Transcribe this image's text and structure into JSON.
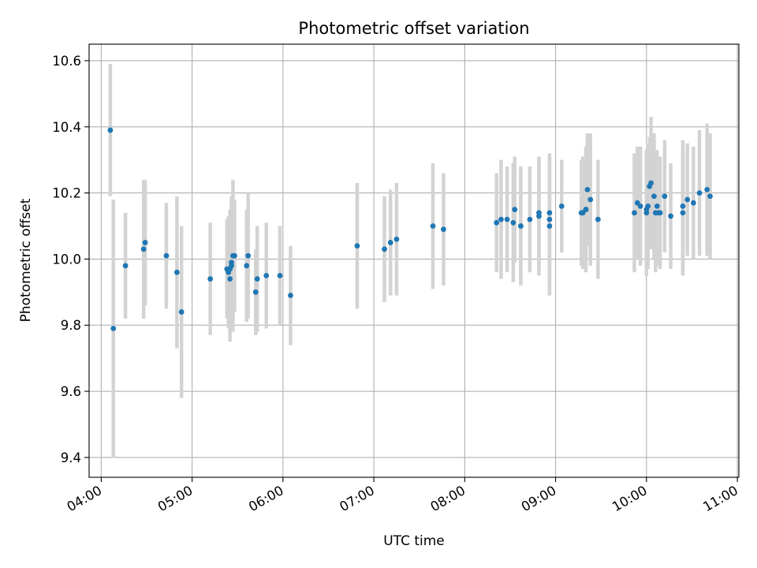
{
  "chart_data": {
    "type": "scatter",
    "title": "Photometric offset variation",
    "xlabel": "UTC time",
    "ylabel": "Photometric offset",
    "x_axis": "time (HH:MM UTC)",
    "xlim": [
      "03:52",
      "11:01"
    ],
    "ylim": [
      9.34,
      10.65
    ],
    "xticks": [
      "04:00",
      "05:00",
      "06:00",
      "07:00",
      "08:00",
      "09:00",
      "10:00",
      "11:00"
    ],
    "yticks": [
      9.4,
      9.6,
      9.8,
      10.0,
      10.2,
      10.4,
      10.6
    ],
    "ytick_labels": [
      "9.4",
      "9.6",
      "9.8",
      "10.0",
      "10.2",
      "10.4",
      "10.6"
    ],
    "grid": true,
    "legend": "none",
    "colors": {
      "points": "#1f77b4",
      "error_bars": "#d3d3d3",
      "grid": "#b0b0b0"
    },
    "series": [
      {
        "x": [
          "04:06",
          "04:08",
          "04:16",
          "04:28",
          "04:29",
          "04:43",
          "04:50",
          "04:53",
          "05:12",
          "05:23",
          "05:24",
          "05:25",
          "05:25",
          "05:26",
          "05:26",
          "05:27",
          "05:28",
          "05:36",
          "05:37",
          "05:42",
          "05:43",
          "05:49",
          "05:58",
          "06:05",
          "06:49",
          "07:07",
          "07:11",
          "07:15",
          "07:39",
          "07:46",
          "08:21",
          "08:24",
          "08:28",
          "08:32",
          "08:33",
          "08:37",
          "08:37",
          "08:43",
          "08:49",
          "08:49",
          "08:56",
          "08:56",
          "08:56",
          "09:04",
          "09:17",
          "09:18",
          "09:20",
          "09:20",
          "09:21",
          "09:23",
          "09:28",
          "09:52",
          "09:54",
          "09:56",
          "10:00",
          "10:00",
          "10:01",
          "10:02",
          "10:03",
          "10:05",
          "10:06",
          "10:07",
          "10:08",
          "10:09",
          "10:12",
          "10:16",
          "10:24",
          "10:24",
          "10:27",
          "10:31",
          "10:35",
          "10:40",
          "10:42"
        ],
        "y": [
          10.39,
          9.79,
          9.98,
          10.03,
          10.05,
          10.01,
          9.96,
          9.84,
          9.94,
          9.97,
          9.96,
          9.94,
          9.97,
          9.98,
          9.99,
          10.01,
          10.01,
          9.98,
          10.01,
          9.9,
          9.94,
          9.95,
          9.95,
          9.89,
          10.04,
          10.03,
          10.05,
          10.06,
          10.1,
          10.09,
          10.11,
          10.12,
          10.12,
          10.11,
          10.15,
          10.1,
          10.1,
          10.12,
          10.13,
          10.14,
          10.1,
          10.12,
          10.14,
          10.16,
          10.14,
          10.14,
          10.15,
          10.15,
          10.21,
          10.18,
          10.12,
          10.14,
          10.17,
          10.16,
          10.15,
          10.14,
          10.16,
          10.22,
          10.23,
          10.19,
          10.14,
          10.16,
          10.14,
          10.14,
          10.19,
          10.13,
          10.14,
          10.16,
          10.18,
          10.17,
          10.2,
          10.21,
          10.19
        ],
        "err": [
          0.2,
          0.39,
          0.16,
          0.21,
          0.19,
          0.16,
          0.23,
          0.26,
          0.17,
          0.15,
          0.17,
          0.19,
          0.18,
          0.19,
          0.2,
          0.23,
          0.17,
          0.17,
          0.19,
          0.13,
          0.16,
          0.16,
          0.15,
          0.15,
          0.19,
          0.16,
          0.16,
          0.17,
          0.19,
          0.17,
          0.15,
          0.18,
          0.16,
          0.18,
          0.16,
          0.16,
          0.18,
          0.16,
          0.18,
          0.16,
          0.21,
          0.19,
          0.18,
          0.14,
          0.16,
          0.17,
          0.15,
          0.19,
          0.17,
          0.2,
          0.18,
          0.18,
          0.17,
          0.18,
          0.18,
          0.19,
          0.19,
          0.15,
          0.2,
          0.19,
          0.18,
          0.17,
          0.16,
          0.17,
          0.17,
          0.16,
          0.19,
          0.2,
          0.17,
          0.17,
          0.19,
          0.2,
          0.19
        ]
      }
    ]
  }
}
